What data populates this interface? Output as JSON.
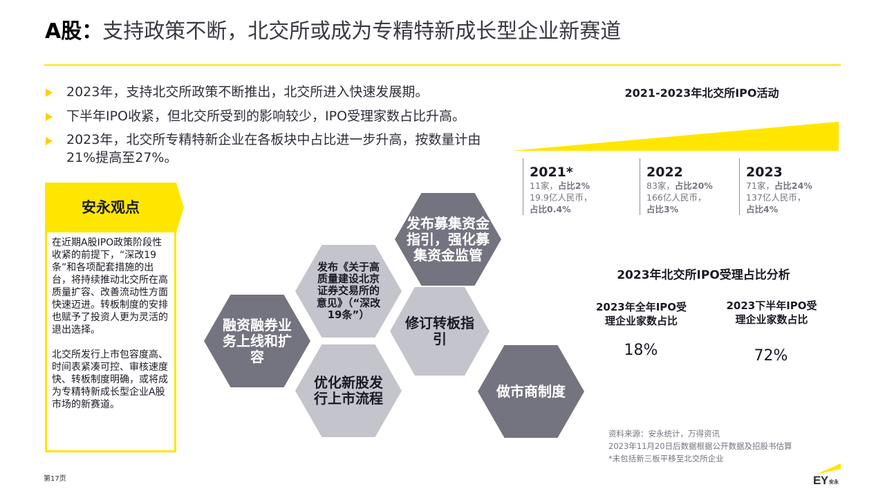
{
  "title": {
    "lead": "A股：",
    "rest": "支持政策不断，北交所或成为专精特新成长型企业新赛道"
  },
  "bullets": [
    "2023年，支持北交所政策不断推出，北交所进入快速发展期。",
    "下半年IPO收紧，但北交所受到的影响较少，IPO受理家数占比升高。",
    "2023年，北交所专精特新企业在各板块中占比进一步升高，按数量计由21%提高至27%。"
  ],
  "viewpoint": {
    "heading": "安永观点",
    "paragraphs": [
      "在近期A股IPO政策阶段性收紧的前提下，“深改19条”和各项配套措施的出台，将持续推动北交所在高质量扩容、改善流动性方面快速迈进。转板制度的安排也赋予了投资人更为灵活的退出选择。",
      "北交所发行上市包容度高、时间表紧凑可控、审核速度快、转板制度明确，或将成为专精特新成长型企业A股市场的新赛道。"
    ]
  },
  "hexagons": [
    {
      "id": "fundraise",
      "text": "发布募集资金指引，强化募集资金监管",
      "color": "#747480",
      "text_color": "#ffffff"
    },
    {
      "id": "opinion",
      "text": "发布《关于高质量建设北京证券交易所的意见》（“深改19条”）",
      "color": "#c4c4cd",
      "text_color": "#1a1a24"
    },
    {
      "id": "financing",
      "text": "融资融券业务上线和扩容",
      "color": "#747480",
      "text_color": "#ffffff"
    },
    {
      "id": "transfer",
      "text": "修订转板指引",
      "color": "#c4c4cd",
      "text_color": "#1a1a24"
    },
    {
      "id": "listing",
      "text": "优化新股发行上市流程",
      "color": "#c4c4cd",
      "text_color": "#1a1a24"
    },
    {
      "id": "market-maker",
      "text": "做市商制度",
      "color": "#747480",
      "text_color": "#ffffff"
    }
  ],
  "ipo_activity": {
    "title": "2021-2023年北交所IPO活动",
    "years": [
      {
        "year": "2021*",
        "count": "11家，",
        "count_share": "占比2%",
        "amount": "19.9亿人民币，",
        "amount_share": "占比0.4%"
      },
      {
        "year": "2022",
        "count": "83家，",
        "count_share": "占比20%",
        "amount": "166亿人民币，",
        "amount_share": "占比3%"
      },
      {
        "year": "2023",
        "count": "71家，",
        "count_share": "占比24%",
        "amount": "137亿人民币，",
        "amount_share": "占比4%"
      }
    ]
  },
  "share_analysis": {
    "title": "2023年北交所IPO受理占比分析",
    "items": [
      {
        "label": "2023年全年IPO受理企业家数占比",
        "value": "18%"
      },
      {
        "label": "2023下半年IPO受理企业家数占比",
        "value": "72%"
      }
    ]
  },
  "source_lines": [
    "资料来源：安永统计，万得资讯",
    "2023年11月20日后数据根据公开数据及招股书估算",
    "*未包括新三板平移至北交所企业"
  ],
  "page_number": "第17页",
  "logo": {
    "mark": "EY",
    "name": "安永"
  },
  "colors": {
    "accent_yellow": "#ffe600",
    "dark_gray": "#747480",
    "light_gray": "#c4c4cd",
    "text": "#2e2e38"
  }
}
